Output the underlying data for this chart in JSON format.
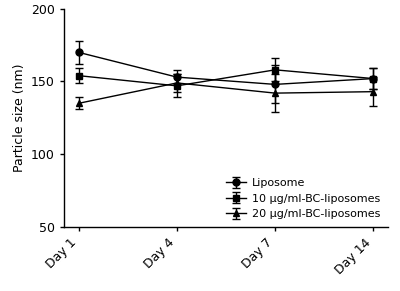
{
  "x_labels": [
    "Day 1",
    "Day 4",
    "Day 7",
    "Day 14"
  ],
  "x_positions": [
    0,
    1,
    2,
    3
  ],
  "series": [
    {
      "label": "Liposome",
      "marker": "o",
      "values": [
        170,
        153,
        148,
        152
      ],
      "yerr": [
        8,
        5,
        13,
        7
      ]
    },
    {
      "label": "10 μg/ml-BC-liposomes",
      "marker": "s",
      "values": [
        154,
        147,
        158,
        152
      ],
      "yerr": [
        5,
        8,
        8,
        7
      ]
    },
    {
      "label": "20 μg/ml-BC-liposomes",
      "marker": "^",
      "values": [
        135,
        149,
        142,
        143
      ],
      "yerr": [
        4,
        6,
        13,
        10
      ]
    }
  ],
  "ylabel": "Particle size (nm)",
  "ylim": [
    50,
    200
  ],
  "yticks": [
    50,
    100,
    150,
    200
  ],
  "line_color": "black",
  "marker_size": 5,
  "capsize": 3,
  "background_color": "#ffffff"
}
